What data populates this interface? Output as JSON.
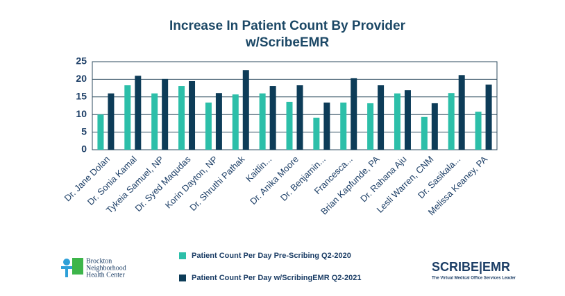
{
  "chart_data": {
    "type": "bar",
    "title": "Increase In Patient Count By Provider w/ScribeEMR",
    "categories": [
      "Dr. Jane Dolan",
      "Dr. Sonia Kamal",
      "Tykeia Samuel, NP",
      "Dr. Syed Maqudas",
      "Korin Dayton, NP",
      "Dr. Shruthi Pathak",
      "Kaitlin...",
      "Dr. Anika Moore",
      "Dr. Benjamin...",
      "Francesca...",
      "Brian Kapfunde, PA",
      "Dr. Rahana Aju",
      "Lesli Warren, CNM",
      "Dr. Sasikala...",
      "Melissa Keaney, PA"
    ],
    "series": [
      {
        "name": "Patient Count Per Day Pre-Scribing Q2-2020",
        "color": "#2cbfa9",
        "values": [
          10,
          18.3,
          16,
          18.1,
          13.4,
          15.7,
          16,
          13.6,
          9.1,
          13.4,
          13.2,
          16,
          9.3,
          16.1,
          10.8
        ]
      },
      {
        "name": "Patient Count Per Day w/ScribingEMR Q2-2021",
        "color": "#0d3c58",
        "values": [
          16,
          21,
          20.1,
          19.5,
          16.1,
          22.6,
          18.1,
          18.3,
          13.4,
          20.3,
          18.3,
          16.9,
          13.2,
          21.2,
          18.5
        ]
      }
    ],
    "ylim": [
      0,
      25
    ],
    "yticks": [
      0,
      5,
      10,
      15,
      20,
      25
    ],
    "grid": true
  },
  "logos": {
    "left": [
      "Brockton",
      "Neighborhood",
      "Health Center"
    ],
    "right": "SCRIBE|EMR",
    "right_tagline": "The Virtual Medical Office Services Leader"
  }
}
